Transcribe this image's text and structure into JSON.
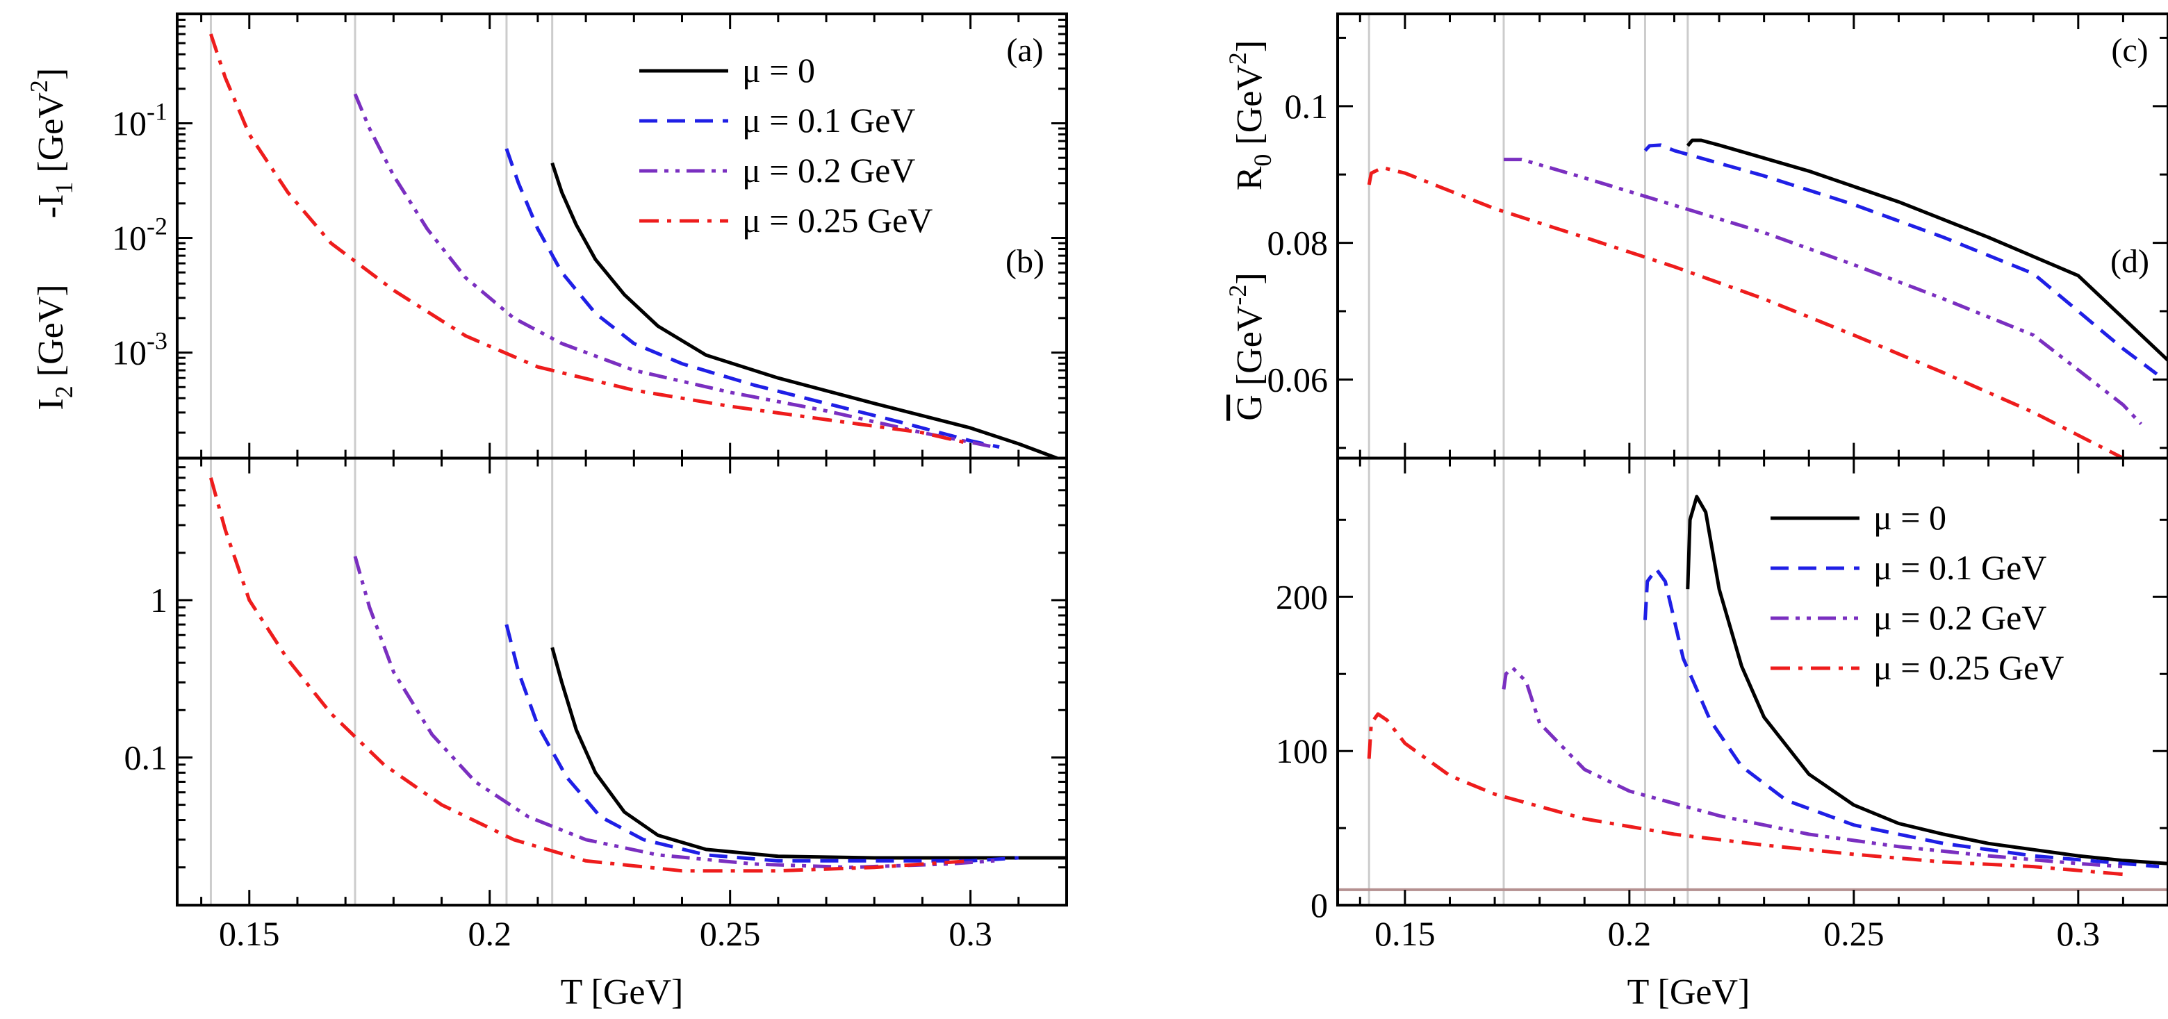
{
  "figure": {
    "x_label": "T [GeV]"
  },
  "legend": [
    {
      "label": "μ = 0",
      "color": "#000000",
      "dash": "solid"
    },
    {
      "label": "μ = 0.1 GeV",
      "color": "#1f1fe6",
      "dash": "dash"
    },
    {
      "label": "μ = 0.2 GeV",
      "color": "#7a2fc0",
      "dash": "dashdotdot"
    },
    {
      "label": "μ = 0.25 GeV",
      "color": "#ee1c1c",
      "dash": "dashdot"
    }
  ],
  "chart_data": [
    {
      "id": "a",
      "type": "line",
      "panel_tag": "(a)",
      "ylabel": "-I_1 [GeV^2]",
      "yscale": "log",
      "xlim": [
        0.135,
        0.32
      ],
      "ylim": [
        0.00012,
        0.9
      ],
      "x_ticks": [
        0.15,
        0.2,
        0.25,
        0.3
      ],
      "y_ticks": [
        {
          "value": 0.1,
          "label": "10^-1"
        },
        {
          "value": 0.01,
          "label": "10^-2"
        },
        {
          "value": 0.001,
          "label": "10^-3"
        }
      ],
      "vlines": [
        0.142,
        0.172,
        0.2035,
        0.213
      ],
      "series": [
        {
          "name": "μ = 0",
          "x": [
            0.213,
            0.215,
            0.218,
            0.222,
            0.228,
            0.235,
            0.245,
            0.26,
            0.28,
            0.3,
            0.31,
            0.318
          ],
          "y": [
            0.045,
            0.025,
            0.013,
            0.0065,
            0.0032,
            0.0017,
            0.00095,
            0.0006,
            0.00036,
            0.00022,
            0.00016,
            0.00012
          ]
        },
        {
          "name": "μ = 0.1 GeV",
          "x": [
            0.2035,
            0.206,
            0.21,
            0.215,
            0.222,
            0.23,
            0.24,
            0.255,
            0.27,
            0.285,
            0.3,
            0.306
          ],
          "y": [
            0.06,
            0.03,
            0.012,
            0.005,
            0.0022,
            0.0012,
            0.0008,
            0.00052,
            0.00036,
            0.00025,
            0.00017,
            0.00015
          ]
        },
        {
          "name": "μ = 0.2 GeV",
          "x": [
            0.172,
            0.175,
            0.18,
            0.187,
            0.195,
            0.205,
            0.215,
            0.23,
            0.25,
            0.27,
            0.29,
            0.305
          ],
          "y": [
            0.18,
            0.09,
            0.035,
            0.012,
            0.0045,
            0.002,
            0.0012,
            0.0007,
            0.00045,
            0.00031,
            0.0002,
            0.00015
          ]
        },
        {
          "name": "μ = 0.25 GeV",
          "x": [
            0.142,
            0.145,
            0.15,
            0.158,
            0.167,
            0.18,
            0.195,
            0.21,
            0.23,
            0.25,
            0.27,
            0.29,
            0.3
          ],
          "y": [
            0.6,
            0.25,
            0.08,
            0.025,
            0.009,
            0.0035,
            0.0014,
            0.00075,
            0.00047,
            0.00034,
            0.00026,
            0.0002,
            0.00016
          ]
        }
      ]
    },
    {
      "id": "b",
      "type": "line",
      "panel_tag": "(b)",
      "ylabel": "I_2 [GeV]",
      "yscale": "log",
      "xlim": [
        0.135,
        0.32
      ],
      "ylim": [
        0.0115,
        8.0
      ],
      "x_ticks": [
        0.15,
        0.2,
        0.25,
        0.3
      ],
      "y_ticks": [
        {
          "value": 1,
          "label": "1"
        },
        {
          "value": 0.1,
          "label": "0.1"
        }
      ],
      "vlines": [
        0.142,
        0.172,
        0.2035,
        0.213
      ],
      "series": [
        {
          "name": "μ = 0",
          "x": [
            0.213,
            0.215,
            0.218,
            0.222,
            0.228,
            0.235,
            0.245,
            0.26,
            0.28,
            0.3,
            0.32
          ],
          "y": [
            0.5,
            0.3,
            0.15,
            0.08,
            0.045,
            0.032,
            0.026,
            0.0235,
            0.023,
            0.023,
            0.023
          ]
        },
        {
          "name": "μ = 0.1 GeV",
          "x": [
            0.2035,
            0.206,
            0.21,
            0.216,
            0.223,
            0.232,
            0.245,
            0.26,
            0.28,
            0.3,
            0.31
          ],
          "y": [
            0.7,
            0.35,
            0.16,
            0.075,
            0.042,
            0.03,
            0.024,
            0.022,
            0.022,
            0.022,
            0.023
          ]
        },
        {
          "name": "μ = 0.2 GeV",
          "x": [
            0.172,
            0.175,
            0.18,
            0.188,
            0.197,
            0.208,
            0.22,
            0.235,
            0.255,
            0.275,
            0.295,
            0.305
          ],
          "y": [
            1.9,
            0.9,
            0.35,
            0.14,
            0.07,
            0.042,
            0.03,
            0.024,
            0.021,
            0.02,
            0.021,
            0.022
          ]
        },
        {
          "name": "μ = 0.25 GeV",
          "x": [
            0.142,
            0.145,
            0.15,
            0.158,
            0.167,
            0.178,
            0.19,
            0.205,
            0.22,
            0.24,
            0.26,
            0.28,
            0.3
          ],
          "y": [
            6.0,
            2.8,
            1.0,
            0.42,
            0.19,
            0.09,
            0.05,
            0.03,
            0.022,
            0.019,
            0.019,
            0.02,
            0.022
          ]
        }
      ]
    },
    {
      "id": "c",
      "type": "line",
      "panel_tag": "(c)",
      "ylabel": "R_0 [GeV^2]",
      "yscale": "linear",
      "xlim": [
        0.135,
        0.32
      ],
      "ylim": [
        0.0485,
        0.1135
      ],
      "x_ticks": [
        0.15,
        0.2,
        0.25,
        0.3
      ],
      "y_ticks": [
        {
          "value": 0.1,
          "label": "0.1"
        },
        {
          "value": 0.08,
          "label": "0.08"
        },
        {
          "value": 0.06,
          "label": "0.06"
        }
      ],
      "vlines": [
        0.142,
        0.172,
        0.2035,
        0.213
      ],
      "series": [
        {
          "name": "μ = 0",
          "x": [
            0.213,
            0.214,
            0.216,
            0.22,
            0.24,
            0.26,
            0.28,
            0.3,
            0.32
          ],
          "y": [
            0.0942,
            0.095,
            0.095,
            0.0943,
            0.0905,
            0.086,
            0.0808,
            0.0752,
            0.0628
          ]
        },
        {
          "name": "μ = 0.1 GeV",
          "x": [
            0.2035,
            0.2045,
            0.207,
            0.21,
            0.23,
            0.25,
            0.27,
            0.29,
            0.31,
            0.3175
          ],
          "y": [
            0.0935,
            0.0942,
            0.0943,
            0.0935,
            0.0898,
            0.0856,
            0.0808,
            0.0755,
            0.0645,
            0.0608
          ]
        },
        {
          "name": "μ = 0.2 GeV",
          "x": [
            0.172,
            0.176,
            0.19,
            0.21,
            0.23,
            0.25,
            0.27,
            0.29,
            0.31,
            0.314
          ],
          "y": [
            0.0922,
            0.0922,
            0.0895,
            0.0855,
            0.0815,
            0.0768,
            0.0718,
            0.0665,
            0.0563,
            0.0535
          ]
        },
        {
          "name": "μ = 0.25 GeV",
          "x": [
            0.142,
            0.1425,
            0.145,
            0.15,
            0.17,
            0.19,
            0.21,
            0.23,
            0.25,
            0.27,
            0.29,
            0.31
          ],
          "y": [
            0.0885,
            0.0902,
            0.091,
            0.0902,
            0.085,
            0.0808,
            0.0765,
            0.0718,
            0.0665,
            0.061,
            0.0552,
            0.0485
          ]
        }
      ]
    },
    {
      "id": "d",
      "type": "line",
      "panel_tag": "(d)",
      "ylabel": "G-bar [GeV^-2]",
      "yscale": "linear",
      "xlim": [
        0.135,
        0.32
      ],
      "ylim": [
        0,
        290
      ],
      "x_ticks": [
        0.15,
        0.2,
        0.25,
        0.3
      ],
      "y_ticks": [
        {
          "value": 0,
          "label": "0"
        },
        {
          "value": 100,
          "label": "100"
        },
        {
          "value": 200,
          "label": "200"
        }
      ],
      "vlines": [
        0.142,
        0.172,
        0.2035,
        0.213
      ],
      "hline": {
        "y": 10,
        "color": "#b49090"
      },
      "series": [
        {
          "name": "μ = 0",
          "x": [
            0.213,
            0.2135,
            0.215,
            0.217,
            0.22,
            0.225,
            0.23,
            0.24,
            0.25,
            0.26,
            0.27,
            0.28,
            0.29,
            0.3,
            0.31,
            0.32
          ],
          "y": [
            205,
            250,
            265,
            255,
            205,
            155,
            122,
            85,
            65,
            53,
            46,
            40,
            36,
            32,
            29,
            27
          ]
        },
        {
          "name": "μ = 0.1 GeV",
          "x": [
            0.2035,
            0.204,
            0.206,
            0.208,
            0.212,
            0.218,
            0.225,
            0.235,
            0.25,
            0.27,
            0.29,
            0.31,
            0.318
          ],
          "y": [
            185,
            210,
            218,
            210,
            160,
            120,
            90,
            68,
            52,
            40,
            32,
            27,
            25
          ]
        },
        {
          "name": "μ = 0.2 GeV",
          "x": [
            0.172,
            0.1725,
            0.174,
            0.177,
            0.18,
            0.19,
            0.2,
            0.22,
            0.24,
            0.26,
            0.28,
            0.3,
            0.31
          ],
          "y": [
            140,
            150,
            154,
            145,
            118,
            88,
            74,
            58,
            46,
            38,
            32,
            27,
            25
          ]
        },
        {
          "name": "μ = 0.25 GeV",
          "x": [
            0.142,
            0.1425,
            0.144,
            0.146,
            0.15,
            0.16,
            0.17,
            0.19,
            0.21,
            0.23,
            0.25,
            0.27,
            0.29,
            0.31
          ],
          "y": [
            95,
            118,
            124,
            120,
            105,
            84,
            72,
            56,
            46,
            39,
            33,
            28,
            25,
            20
          ]
        }
      ]
    }
  ]
}
